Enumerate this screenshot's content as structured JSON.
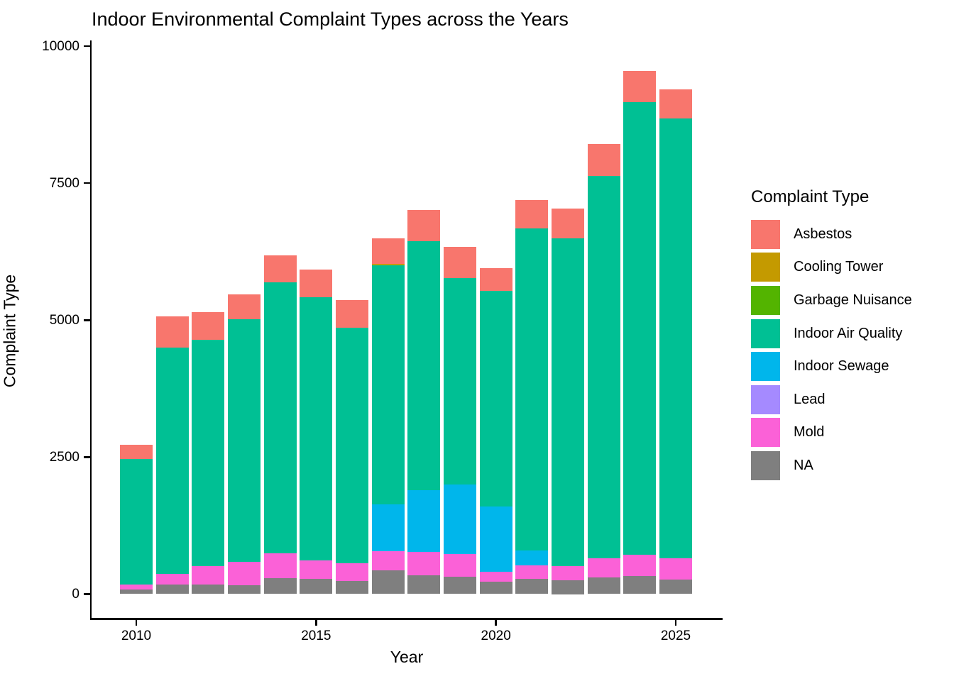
{
  "title": "Indoor Environmental Complaint Types across the Years",
  "chart_data": {
    "type": "bar",
    "stacked": true,
    "title": "Indoor Environmental Complaint Types across the Years",
    "xlabel": "Year",
    "ylabel": "Complaint Type",
    "legend_title": "Complaint Type",
    "legend_position": "right",
    "grid": "off",
    "x": [
      2010,
      2011,
      2012,
      2013,
      2014,
      2015,
      2016,
      2017,
      2018,
      2019,
      2020,
      2021,
      2022,
      2023,
      2024,
      2025
    ],
    "xticks": [
      2010,
      2015,
      2020,
      2025
    ],
    "yticks": [
      0,
      2500,
      5000,
      7500,
      10000
    ],
    "ylim": [
      0,
      10000
    ],
    "stack_order_top_to_bottom": [
      "Asbestos",
      "Cooling Tower",
      "Garbage Nuisance",
      "Indoor Air Quality",
      "Indoor Sewage",
      "Lead",
      "Mold",
      "NA"
    ],
    "series": [
      {
        "name": "Asbestos",
        "color": "#F8766D",
        "values": [
          255,
          575,
          505,
          455,
          490,
          510,
          500,
          460,
          570,
          575,
          405,
          520,
          545,
          585,
          575,
          525
        ]
      },
      {
        "name": "Cooling Tower",
        "color": "#C49A00",
        "values": [
          0,
          0,
          0,
          0,
          0,
          0,
          0,
          30,
          0,
          0,
          0,
          0,
          0,
          0,
          0,
          0
        ]
      },
      {
        "name": "Garbage Nuisance",
        "color": "#53B400",
        "values": [
          0,
          0,
          0,
          0,
          0,
          0,
          0,
          0,
          0,
          0,
          0,
          0,
          0,
          0,
          0,
          0
        ]
      },
      {
        "name": "Indoor Air Quality",
        "color": "#00C094",
        "values": [
          2290,
          4130,
          4125,
          4430,
          4945,
          4800,
          4305,
          4360,
          4545,
          3760,
          3935,
          5885,
          5985,
          6985,
          8260,
          8030
        ]
      },
      {
        "name": "Indoor Sewage",
        "color": "#00B6EB",
        "values": [
          0,
          0,
          0,
          0,
          0,
          0,
          0,
          860,
          1130,
          1275,
          1200,
          260,
          0,
          0,
          0,
          0
        ]
      },
      {
        "name": "Lead",
        "color": "#A58AFF",
        "values": [
          0,
          0,
          0,
          0,
          0,
          0,
          0,
          0,
          0,
          0,
          0,
          0,
          0,
          0,
          0,
          0
        ]
      },
      {
        "name": "Mold",
        "color": "#FB61D7",
        "values": [
          90,
          190,
          340,
          430,
          455,
          335,
          325,
          350,
          420,
          410,
          180,
          250,
          260,
          350,
          380,
          390
        ]
      },
      {
        "name": "NA",
        "color": "#7F7F7F",
        "values": [
          85,
          175,
          175,
          160,
          290,
          280,
          235,
          430,
          345,
          320,
          225,
          280,
          250,
          300,
          335,
          260
        ]
      }
    ],
    "totals": [
      2720,
      5070,
      5145,
      5475,
      6180,
      5925,
      5365,
      6490,
      7010,
      6340,
      5945,
      7195,
      7040,
      8220,
      9550,
      9205
    ]
  }
}
